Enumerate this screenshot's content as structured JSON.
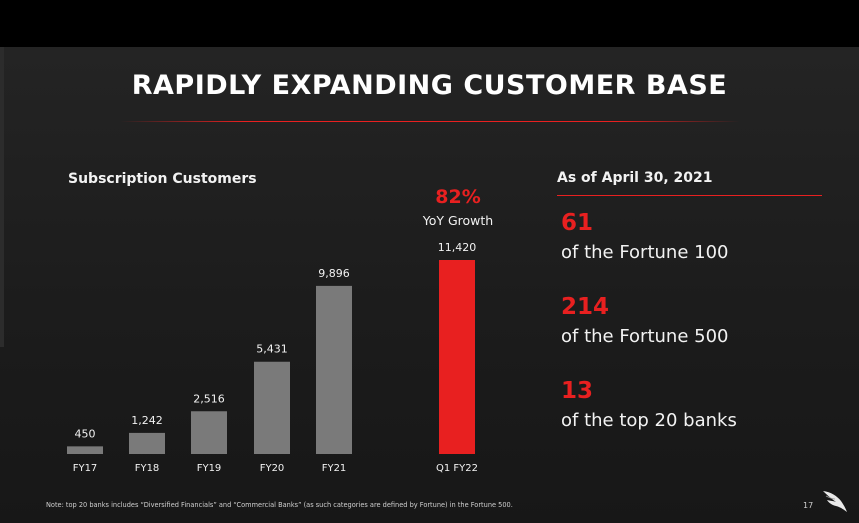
{
  "title": "RAPIDLY EXPANDING CUSTOMER BASE",
  "growth": {
    "percent": "82%",
    "label": "YoY Growth"
  },
  "chart_data": {
    "type": "bar",
    "title": "Subscription Customers",
    "categories": [
      "FY17",
      "FY18",
      "FY19",
      "FY20",
      "FY21",
      "Q1 FY22"
    ],
    "values": [
      450,
      1242,
      2516,
      5431,
      9896,
      11420
    ],
    "value_labels": [
      "450",
      "1,242",
      "2,516",
      "5,431",
      "9,896",
      "11,420"
    ],
    "highlight_index": 5,
    "ylim": [
      0,
      11420
    ],
    "grid": false,
    "colors": {
      "bar": "#7a7a7a",
      "highlight": "#e82020"
    }
  },
  "stats": {
    "as_of": "As of April 30, 2021",
    "items": [
      {
        "value": "61",
        "label": "of the Fortune 100"
      },
      {
        "value": "214",
        "label": "of the Fortune 500"
      },
      {
        "value": "13",
        "label": "of the top 20 banks"
      }
    ]
  },
  "footnote": "Note: top 20 banks includes “Diversified Financials” and “Commercial Banks” (as such categories are defined by Fortune) in the Fortune 500.",
  "page_number": "17",
  "icons": {
    "logo": "falcon-logo-icon"
  }
}
